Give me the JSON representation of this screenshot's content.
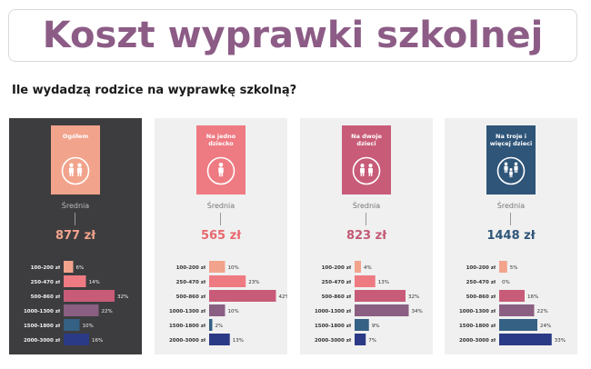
{
  "title": "Koszt wyprawki szkolnej",
  "subtitle": "Ile wydadzą rodzice na wyprawkę szkolną?",
  "colors": {
    "title": "#8c5c86",
    "bar_colors": [
      "#f2a38c",
      "#ee7a82",
      "#c85c78",
      "#8a5f82",
      "#356184",
      "#2b3a86"
    ]
  },
  "chart_data": [
    {
      "type": "bar",
      "orientation": "horizontal",
      "title": "Ogółem",
      "icon": "two-people-icon",
      "average_label": "Średnia",
      "average_value": "877 zł",
      "categories": [
        "100-200 zł",
        "250-470 zł",
        "500-860 zł",
        "1000-1300 zł",
        "1500-1800 zł",
        "2000-3000 zł"
      ],
      "values": [
        6,
        14,
        32,
        22,
        10,
        16
      ],
      "value_labels": [
        "6%",
        "14%",
        "32%",
        "22%",
        "10%",
        "16%"
      ],
      "theme": {
        "bg": "#3d3d3f",
        "badge": "#f2a38c",
        "avg_color": "#f2a38c",
        "label_color": "#f0f0f0",
        "avg_label_color": "#bbbbbb"
      }
    },
    {
      "type": "bar",
      "orientation": "horizontal",
      "title": "Na jedno dziecko",
      "icon": "child-icon",
      "average_label": "Średnia",
      "average_value": "565 zł",
      "categories": [
        "100-200 zł",
        "250-470 zł",
        "500-860 zł",
        "1000-1300 zł",
        "1500-1800 zł",
        "2000-3000 zł"
      ],
      "values": [
        10,
        23,
        42,
        10,
        2,
        13
      ],
      "value_labels": [
        "10%",
        "23%",
        "42%",
        "10%",
        "2%",
        "13%"
      ],
      "theme": {
        "bg": "#f0f0f0",
        "badge": "#ee7a82",
        "avg_color": "#e8696f",
        "label_color": "#333333",
        "avg_label_color": "#777777"
      }
    },
    {
      "type": "bar",
      "orientation": "horizontal",
      "title": "Na dwoje dzieci",
      "icon": "two-children-icon",
      "average_label": "Średnia",
      "average_value": "823 zł",
      "categories": [
        "100-200 zł",
        "250-470 zł",
        "500-860 zł",
        "1000-1300 zł",
        "1500-1800 zł",
        "2000-3000 zł"
      ],
      "values": [
        4,
        13,
        32,
        34,
        9,
        7
      ],
      "value_labels": [
        "4%",
        "13%",
        "32%",
        "34%",
        "9%",
        "7%"
      ],
      "theme": {
        "bg": "#f0f0f0",
        "badge": "#c85c78",
        "avg_color": "#c25a74",
        "label_color": "#333333",
        "avg_label_color": "#777777"
      }
    },
    {
      "type": "bar",
      "orientation": "horizontal",
      "title": "Na troje i więcej dzieci",
      "icon": "family-icon",
      "average_label": "Średnia",
      "average_value": "1448 zł",
      "categories": [
        "100-200 zł",
        "250-470 zł",
        "500-860 zł",
        "1000-1300 zł",
        "1500-1800 zł",
        "2000-3000 zł"
      ],
      "values": [
        5,
        0,
        16,
        22,
        24,
        33
      ],
      "value_labels": [
        "5%",
        "0%",
        "16%",
        "22%",
        "24%",
        "33%"
      ],
      "theme": {
        "bg": "#f0f0f0",
        "badge": "#2f5579",
        "avg_color": "#2f5579",
        "label_color": "#333333",
        "avg_label_color": "#777777"
      }
    }
  ]
}
